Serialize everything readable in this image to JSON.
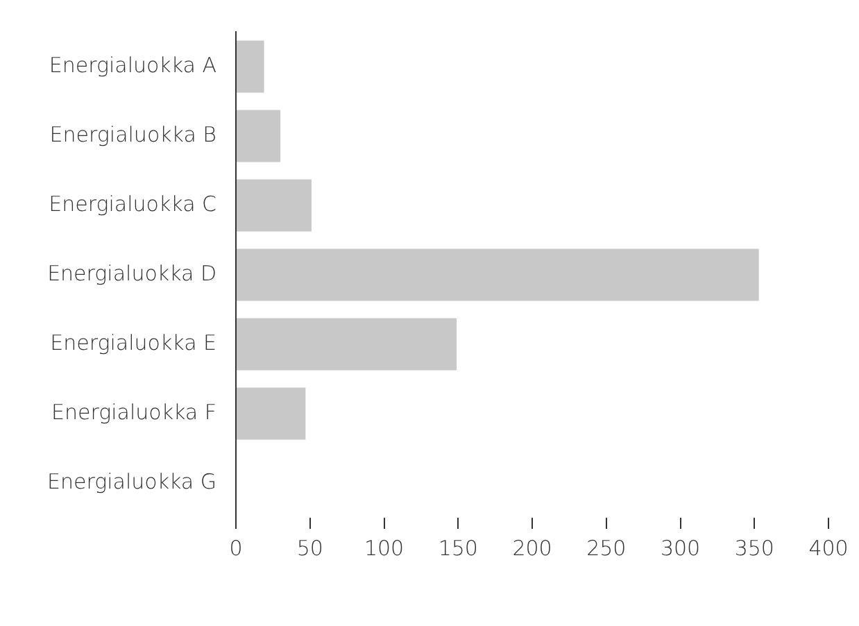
{
  "chart_data": {
    "type": "bar",
    "orientation": "horizontal",
    "categories": [
      "Energialuokka A",
      "Energialuokka B",
      "Energialuokka C",
      "Energialuokka D",
      "Energialuokka E",
      "Energialuokka F",
      "Energialuokka G"
    ],
    "values": [
      19,
      30,
      51,
      353,
      149,
      47,
      0
    ],
    "color": "#c8c8c8",
    "xlim": [
      0,
      400
    ],
    "xticks": [
      0,
      50,
      100,
      150,
      200,
      250,
      300,
      350,
      400
    ],
    "grid": false,
    "legend": false
  }
}
